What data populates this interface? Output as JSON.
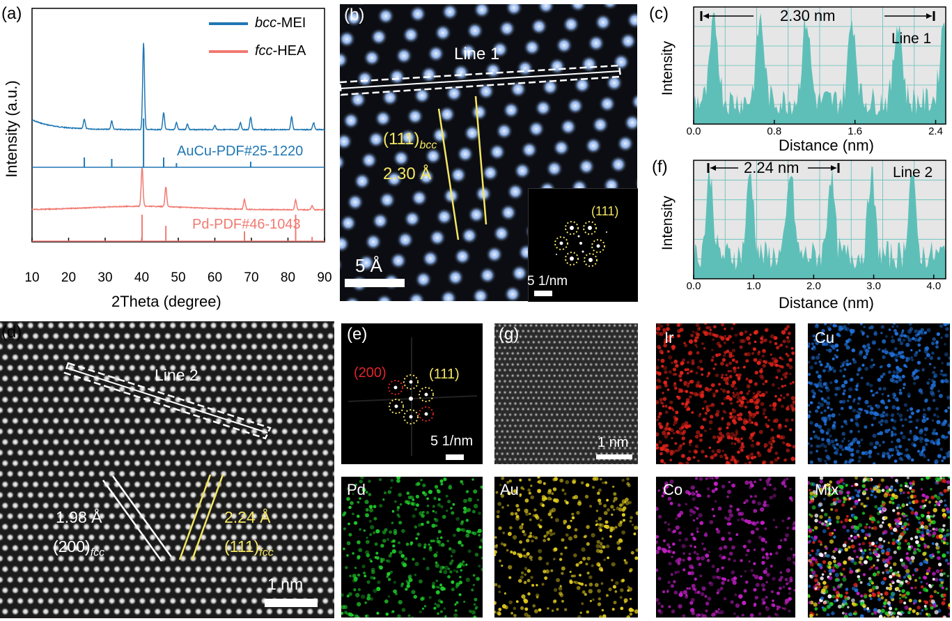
{
  "panel_labels": {
    "a": "(a)",
    "b": "(b)",
    "c": "(c)",
    "d": "(d)",
    "e": "(e)",
    "f": "(f)",
    "g": "(g)"
  },
  "colors": {
    "bcc": "#1f77b4",
    "fcc": "#f07a72",
    "profile_fill": "#5ebfb8",
    "yellow": "#f5e663",
    "red": "#e0242a"
  },
  "panel_a": {
    "legend": [
      {
        "label_italic": "bcc",
        "label_rest": "-MEI"
      },
      {
        "label_italic": "fcc",
        "label_rest": "-HEA"
      }
    ],
    "ref_labels": [
      "AuCu-PDF#25-1220",
      "Pd-PDF#46-1043"
    ],
    "ylabel": "Intensity (a.u.)",
    "xlabel": "2Theta (degree)",
    "xticks": [
      "10",
      "20",
      "30",
      "40",
      "50",
      "60",
      "70",
      "80",
      "90"
    ]
  },
  "panel_b": {
    "line_label": "Line 1",
    "plane_main": "(111)",
    "plane_sub": "bcc",
    "spacing": "2.30 Å",
    "scale": "5 Å",
    "inset_plane": "(111)",
    "inset_scale": "5 1/nm"
  },
  "panel_c": {
    "distance_text": "2.30 nm",
    "line_label": "Line 1",
    "ylabel": "Intensity",
    "xlabel": "Distance (nm)",
    "xticks": [
      "0.0",
      "0.8",
      "1.6",
      "2.4"
    ]
  },
  "panel_f": {
    "distance_text": "2.24 nm",
    "line_label": "Line 2",
    "ylabel": "Intensity",
    "xlabel": "Distance (nm)",
    "xticks": [
      "0.0",
      "1.0",
      "2.0",
      "3.0",
      "4.0"
    ]
  },
  "panel_d": {
    "line_label": "Line 2",
    "spacing_left": "1.98 Å",
    "plane_left_main": "(200)",
    "plane_left_sub": "fcc",
    "spacing_right": "2.24 Å",
    "plane_right_main": "(111)",
    "plane_right_sub": "fcc",
    "scale": "1 nm"
  },
  "panel_e": {
    "plane_red": "(200)",
    "plane_yellow": "(111)",
    "scale": "5 1/nm"
  },
  "panel_g": {
    "scale": "1 nm"
  },
  "maps": [
    {
      "label": "Ir",
      "color": "#e2231a"
    },
    {
      "label": "Cu",
      "color": "#1f6fd6"
    },
    {
      "label": "Pd",
      "color": "#1fcc2a"
    },
    {
      "label": "Au",
      "color": "#e5cf1f"
    },
    {
      "label": "Co",
      "color": "#c21fc7"
    },
    {
      "label": "Mix",
      "color": "#ffffff"
    }
  ]
}
